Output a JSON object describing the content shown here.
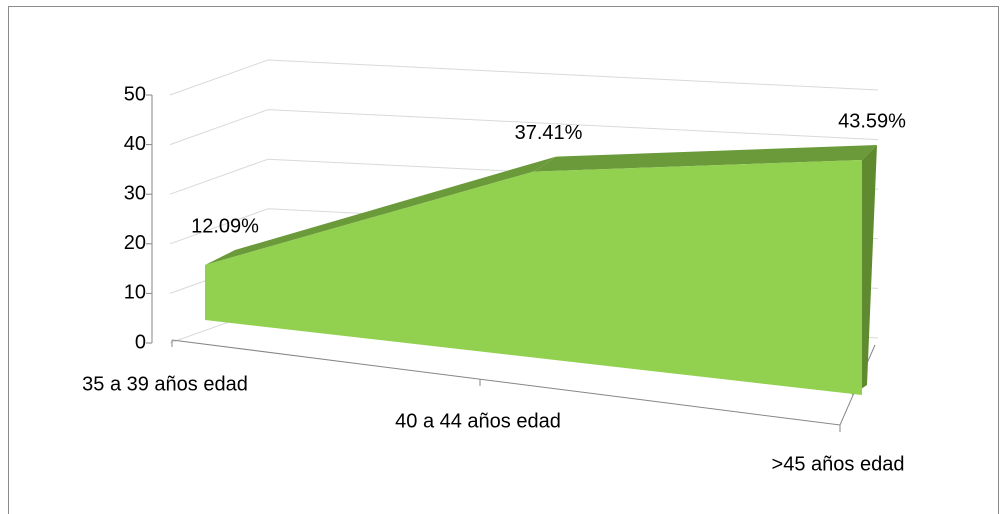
{
  "chart_data": {
    "type": "area3d",
    "categories": [
      "35 a 39 años edad",
      "40 a 44 años edad",
      ">45 años edad"
    ],
    "values": [
      12.09,
      37.41,
      43.59
    ],
    "value_labels": [
      "12.09%",
      "37.41%",
      "43.59%"
    ],
    "color": "#92d050",
    "ylim": [
      0,
      50
    ],
    "yticks": [
      0,
      10,
      20,
      30,
      40,
      50
    ],
    "grid": true
  }
}
